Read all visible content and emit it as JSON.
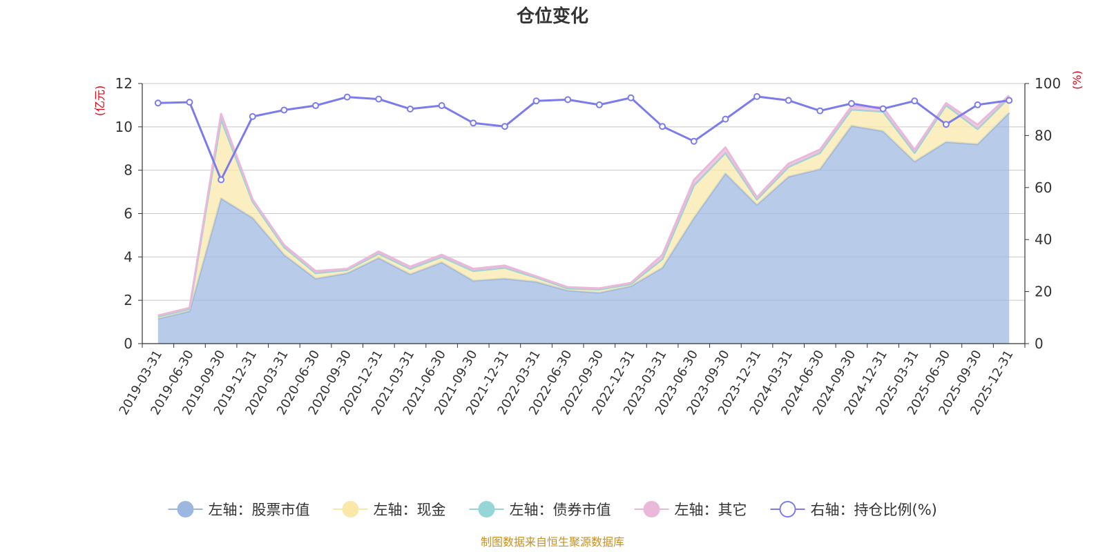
{
  "chart_data": {
    "type": "area",
    "title": "仓位变化",
    "left_axis_unit": "(亿元)",
    "right_axis_unit": "(%)",
    "left_ylim": [
      0,
      12
    ],
    "left_yticks": [
      0,
      2,
      4,
      6,
      8,
      10,
      12
    ],
    "right_ylim": [
      0,
      100
    ],
    "right_yticks": [
      0,
      20,
      40,
      60,
      80,
      100
    ],
    "grid": true,
    "legend_position": "bottom",
    "source": "制图数据来自恒生聚源数据库",
    "x": [
      "2019-03-31",
      "2019-06-30",
      "2019-09-30",
      "2019-12-31",
      "2020-03-31",
      "2020-06-30",
      "2020-09-30",
      "2020-12-31",
      "2021-03-31",
      "2021-06-30",
      "2021-09-30",
      "2021-12-31",
      "2022-03-31",
      "2022-06-30",
      "2022-09-30",
      "2022-12-31",
      "2023-03-31",
      "2023-06-30",
      "2023-09-30",
      "2023-12-31",
      "2024-03-31",
      "2024-06-30",
      "2024-09-30",
      "2024-12-31",
      "2025-03-31",
      "2025-06-30",
      "2025-09-30",
      "2025-12-31"
    ],
    "series": [
      {
        "name": "左轴：股票市值",
        "axis": "left",
        "color": "#9db8e0",
        "values": [
          1.15,
          1.5,
          6.7,
          5.8,
          4.1,
          3.0,
          3.25,
          3.95,
          3.2,
          3.75,
          2.9,
          3.0,
          2.85,
          2.45,
          2.35,
          2.65,
          3.5,
          5.8,
          7.85,
          6.4,
          7.7,
          8.05,
          10.05,
          9.8,
          8.4,
          9.3,
          9.2,
          10.65
        ]
      },
      {
        "name": "左轴：现金",
        "axis": "left",
        "color": "#fae8a8",
        "values": [
          0.1,
          0.1,
          3.65,
          0.75,
          0.35,
          0.25,
          0.15,
          0.2,
          0.25,
          0.25,
          0.45,
          0.5,
          0.2,
          0.1,
          0.15,
          0.1,
          0.4,
          1.5,
          0.95,
          0.25,
          0.45,
          0.75,
          0.75,
          0.9,
          0.4,
          1.7,
          0.7,
          0.7
        ]
      },
      {
        "name": "左轴：债券市值",
        "axis": "left",
        "color": "#96d6d6",
        "values": [
          0,
          0,
          0,
          0,
          0,
          0,
          0,
          0,
          0,
          0,
          0,
          0,
          0,
          0,
          0,
          0,
          0,
          0,
          0,
          0,
          0,
          0,
          0,
          0,
          0,
          0,
          0,
          0
        ]
      },
      {
        "name": "左轴：其它",
        "axis": "left",
        "color": "#eab8d9",
        "values": [
          0.05,
          0.05,
          0.25,
          0.1,
          0.1,
          0.1,
          0.05,
          0.1,
          0.1,
          0.1,
          0.1,
          0.1,
          0.05,
          0.05,
          0.05,
          0.05,
          0.2,
          0.25,
          0.25,
          0.1,
          0.15,
          0.15,
          0.15,
          0.2,
          0.15,
          0.1,
          0.2,
          0.1
        ]
      },
      {
        "name": "右轴：持仓比例(%)",
        "axis": "right",
        "type": "line",
        "color": "#7b7bee",
        "values": [
          92.5,
          92.8,
          63.0,
          87.3,
          89.8,
          91.5,
          94.8,
          94.0,
          90.2,
          91.5,
          84.8,
          83.5,
          93.3,
          93.8,
          91.8,
          94.5,
          83.5,
          77.8,
          86.3,
          95.0,
          93.5,
          89.5,
          92.3,
          90.3,
          93.3,
          84.3,
          91.8,
          93.5
        ]
      }
    ]
  }
}
